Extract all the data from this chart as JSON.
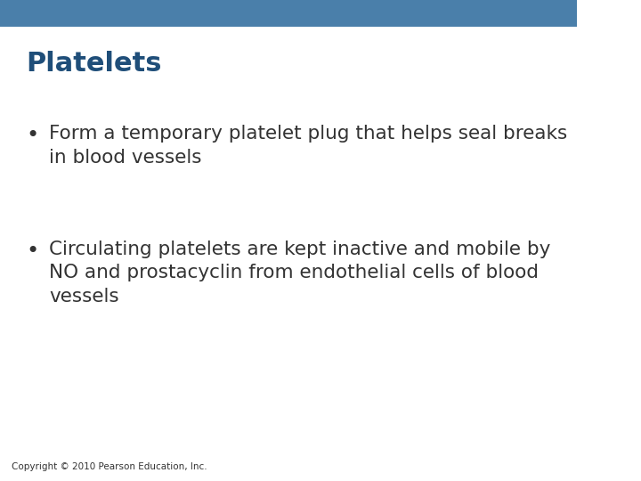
{
  "title": "Platelets",
  "title_color": "#1f4e79",
  "title_fontsize": 22,
  "title_bold": true,
  "background_color": "#ffffff",
  "top_bar_color": "#4a7faa",
  "top_bar_height": 0.055,
  "bullet_points": [
    "Form a temporary platelet plug that helps seal breaks\nin blood vessels",
    "Circulating platelets are kept inactive and mobile by\nNO and prostacyclin from endothelial cells of blood\nvessels"
  ],
  "bullet_color": "#333333",
  "bullet_fontsize": 15.5,
  "copyright_text": "Copyright © 2010 Pearson Education, Inc.",
  "copyright_fontsize": 7.5,
  "copyright_color": "#333333"
}
